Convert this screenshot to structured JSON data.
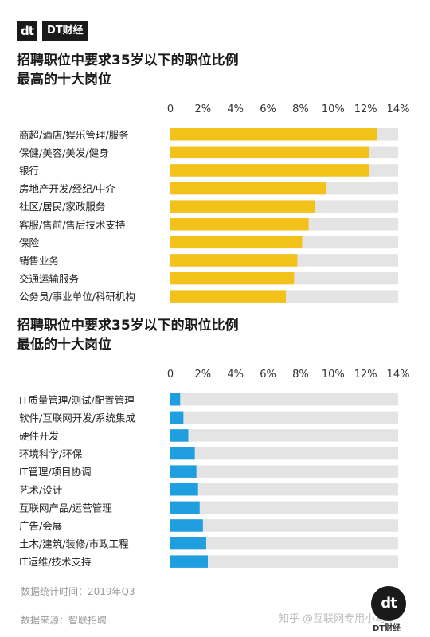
{
  "brand": {
    "logo_mark": "dt",
    "name": "DT财经"
  },
  "chart_data": [
    {
      "type": "bar",
      "orientation": "horizontal",
      "title": "招聘职位中要求35岁以下的职位比例\n最高的十大岗位",
      "categories": [
        "商超/酒店/娱乐管理/服务",
        "保健/美容/美发/健身",
        "银行",
        "房地产开发/经纪/中介",
        "社区/居民/家政服务",
        "客服/售前/售后技术支持",
        "保险",
        "销售业务",
        "交通运输服务",
        "公务员/事业单位/科研机构"
      ],
      "values": [
        12.7,
        12.2,
        12.2,
        9.6,
        8.9,
        8.5,
        8.1,
        7.8,
        7.6,
        7.1
      ],
      "xlim": [
        0,
        14
      ],
      "tick_labels": [
        "0",
        "2%",
        "4%",
        "6%",
        "8%",
        "10%",
        "12%",
        "14%"
      ],
      "bar_color": "#f2c21a",
      "track_color": "#e4e4e4"
    },
    {
      "type": "bar",
      "orientation": "horizontal",
      "title": "招聘职位中要求35岁以下的职位比例\n最低的十大岗位",
      "categories": [
        "IT质量管理/测试/配置管理",
        "软件/互联网开发/系统集成",
        "硬件开发",
        "环境科学/环保",
        "IT管理/项目协调",
        "艺术/设计",
        "互联网产品/运营管理",
        "广告/会展",
        "土木/建筑/装修/市政工程",
        "IT运维/技术支持"
      ],
      "values": [
        0.6,
        0.8,
        1.1,
        1.5,
        1.6,
        1.7,
        1.8,
        2.0,
        2.2,
        2.3
      ],
      "xlim": [
        0,
        14
      ],
      "tick_labels": [
        "0",
        "2%",
        "4%",
        "6%",
        "8%",
        "10%",
        "12%",
        "14%"
      ],
      "bar_color": "#1f9fe0",
      "track_color": "#e4e4e4"
    }
  ],
  "footnotes": {
    "time": "数据统计时间：2019年Q3",
    "source": "数据来源：智联招聘"
  },
  "watermark": {
    "mark": "dt",
    "sub": "DT财经",
    "zhihu": "知乎 @互联网专用小马甲"
  }
}
